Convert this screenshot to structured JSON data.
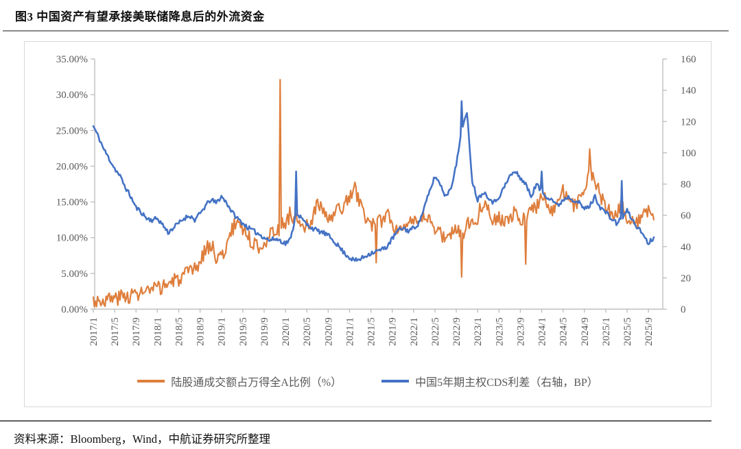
{
  "title": "图3  中国资产有望承接美联储降息后的外流资金",
  "source_note": "资料来源：Bloomberg，Wind，中航证券研究所整理",
  "colors": {
    "orange_series": "#DE7E3C",
    "blue_series": "#4472C4",
    "axis_text": "#595959",
    "axis_line": "#BFBFBF",
    "frame_border": "#D8D8D8",
    "title_text": "#111111"
  },
  "chart_data": {
    "type": "line",
    "grid": false,
    "legend_position": "bottom",
    "x_monthly_start": "2017/1",
    "x_monthly_end": "2025/10",
    "x_tick_labels": [
      "2017/1",
      "2017/5",
      "2017/9",
      "2018/1",
      "2018/5",
      "2018/9",
      "2019/1",
      "2019/5",
      "2019/9",
      "2020/1",
      "2020/5",
      "2020/9",
      "2021/1",
      "2021/5",
      "2021/9",
      "2022/1",
      "2022/5",
      "2022/9",
      "2023/1",
      "2023/5",
      "2023/9",
      "2024/1",
      "2024/5",
      "2024/9",
      "2025/1",
      "2025/5",
      "2025/9"
    ],
    "left_axis": {
      "min": 0,
      "max": 35,
      "tick_labels": [
        "35.00%",
        "30.00%",
        "25.00%",
        "20.00%",
        "15.00%",
        "10.00%",
        "5.00%",
        "0.00%"
      ]
    },
    "right_axis": {
      "min": 0,
      "max": 160,
      "tick_labels": [
        "160",
        "140",
        "120",
        "100",
        "80",
        "60",
        "40",
        "20",
        "0"
      ]
    },
    "series": [
      {
        "name": "陆股通成交额占万得全A比例（%）",
        "axis": "left",
        "color": "#DE7E3C",
        "stroke_width": 2.2,
        "noise": 1.1,
        "monthly_values": [
          1.2,
          1.2,
          1.3,
          1.4,
          1.5,
          1.7,
          1.8,
          2.0,
          2.1,
          2.3,
          2.4,
          2.6,
          2.8,
          3.2,
          3.6,
          3.9,
          4.2,
          4.6,
          5.0,
          5.5,
          6.5,
          8.5,
          9.0,
          7.5,
          7.2,
          9.0,
          11.0,
          12.5,
          11.5,
          10.0,
          9.2,
          8.8,
          9.5,
          10.2,
          10.8,
          11.5,
          12.0,
          13.5,
          12.5,
          11.0,
          11.5,
          12.5,
          15.0,
          13.5,
          12.5,
          13.0,
          14.0,
          14.5,
          15.5,
          17.0,
          14.5,
          13.0,
          12.0,
          11.5,
          12.5,
          13.5,
          12.0,
          11.0,
          12.0,
          12.5,
          12.0,
          11.5,
          13.0,
          12.5,
          11.5,
          10.5,
          10.0,
          10.5,
          11.5,
          10.0,
          12.5,
          12.0,
          13.0,
          15.0,
          14.5,
          12.5,
          13.0,
          12.0,
          12.5,
          13.5,
          12.0,
          13.0,
          14.0,
          14.5,
          15.5,
          15.0,
          14.0,
          15.0,
          16.5,
          15.5,
          14.5,
          15.0,
          17.0,
          19.5,
          18.0,
          16.0,
          14.0,
          13.5,
          13.0,
          14.5,
          13.0,
          12.5,
          12.0,
          13.0,
          13.5,
          12.5
        ],
        "spikes": [
          {
            "month": "2019/12",
            "value": 32.1
          },
          {
            "month": "2024/10",
            "value": 22.4
          },
          {
            "month": "2021/6",
            "value": 6.5
          },
          {
            "month": "2022/10",
            "value": 4.5
          },
          {
            "month": "2023/10",
            "value": 6.3
          }
        ]
      },
      {
        "name": "中国5年期主权CDS利差（右轴，BP）",
        "axis": "right",
        "color": "#4472C4",
        "stroke_width": 2.6,
        "noise": 1.5,
        "monthly_values": [
          117,
          110,
          102,
          96,
          90,
          85,
          78,
          72,
          65,
          62,
          58,
          57,
          58,
          54,
          49,
          52,
          55,
          58,
          60,
          57,
          61,
          66,
          70,
          68,
          72,
          68,
          62,
          58,
          55,
          52,
          50,
          48,
          46,
          44,
          45,
          44,
          42,
          45,
          62,
          58,
          54,
          52,
          50,
          49,
          47,
          44,
          40,
          36,
          33,
          31,
          32,
          34,
          36,
          37,
          38,
          40,
          45,
          50,
          52,
          50,
          52,
          55,
          65,
          75,
          85,
          80,
          72,
          78,
          92,
          115,
          125,
          82,
          70,
          75,
          72,
          68,
          72,
          78,
          85,
          88,
          84,
          80,
          72,
          80,
          75,
          72,
          70,
          66,
          70,
          72,
          70,
          68,
          64,
          66,
          72,
          65,
          62,
          58,
          55,
          58,
          63,
          57,
          52,
          48,
          42,
          46
        ],
        "spikes": [
          {
            "month": "2020/3",
            "value": 88
          },
          {
            "month": "2022/10",
            "value": 133
          },
          {
            "month": "2024/1",
            "value": 88
          },
          {
            "month": "2025/4",
            "value": 82
          }
        ]
      }
    ]
  }
}
